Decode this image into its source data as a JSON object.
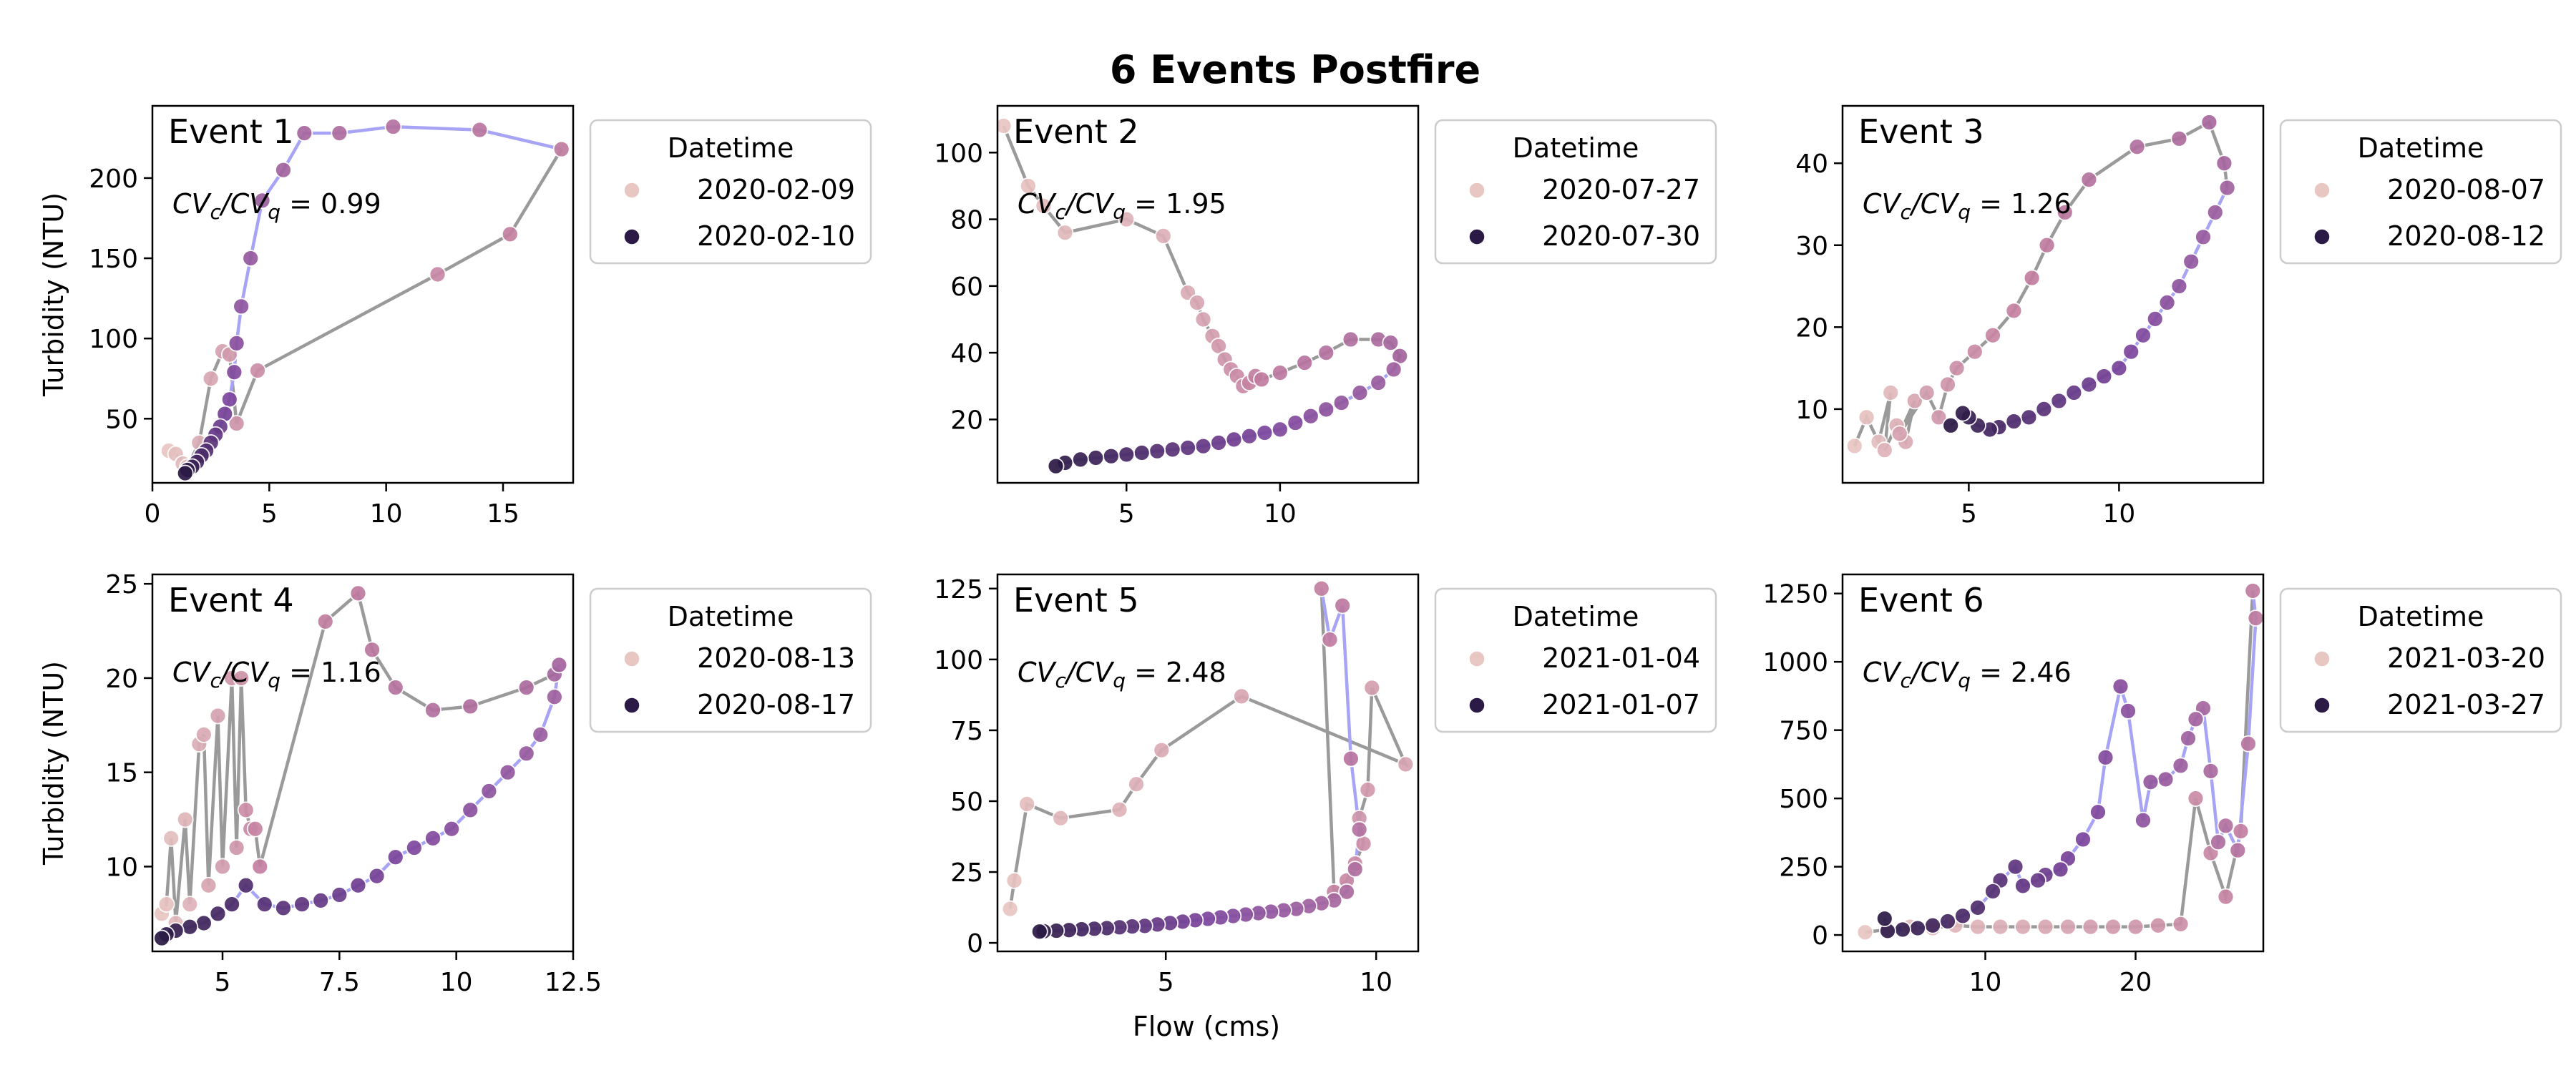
{
  "figure": {
    "title": "6 Events Postfire",
    "xlabel": "Flow (cms)",
    "ylabel": "Turbidity (NTU)",
    "legend_title": "Datetime",
    "colors": {
      "start": "#e8c6c2",
      "end": "#2b1a45",
      "rising_limb": "#a7a3f5",
      "falling_limb": "#9a9a9a"
    }
  },
  "chart_data": [
    {
      "type": "scatter",
      "panel": "Event 1",
      "annotation_ratio": "0.99",
      "legend": [
        "2020-02-09",
        "2020-02-10"
      ],
      "xlim": [
        0,
        18
      ],
      "ylim": [
        10,
        245
      ],
      "xticks": [
        0,
        5,
        10,
        15
      ],
      "yticks": [
        50,
        100,
        150,
        200
      ],
      "show_xticklabels": true,
      "show_ylabel": true,
      "x": [
        0.7,
        1.0,
        1.3,
        1.5,
        2.0,
        2.5,
        3.0,
        3.3,
        3.6,
        4.5,
        12.2,
        15.3,
        17.5,
        14.0,
        10.3,
        8.0,
        6.5,
        5.6,
        4.7,
        4.2,
        3.8,
        3.6,
        3.5,
        3.3,
        3.1,
        2.9,
        2.7,
        2.5,
        2.3,
        2.1,
        1.9,
        1.7,
        1.5,
        1.4
      ],
      "y": [
        30,
        28,
        22,
        20,
        35,
        75,
        92,
        90,
        47,
        80,
        140,
        165,
        218,
        230,
        232,
        228,
        228,
        205,
        186,
        150,
        120,
        97,
        79,
        62,
        53,
        45,
        40,
        35,
        30,
        27,
        23,
        20,
        18,
        16
      ],
      "split": 12
    },
    {
      "type": "scatter",
      "panel": "Event 2",
      "annotation_ratio": "1.95",
      "legend": [
        "2020-07-27",
        "2020-07-30"
      ],
      "xlim": [
        0.8,
        14.5
      ],
      "ylim": [
        1,
        114
      ],
      "xticks": [
        5,
        10
      ],
      "yticks": [
        20,
        40,
        60,
        80,
        100
      ],
      "show_xticklabels": true,
      "show_ylabel": false,
      "x": [
        1.0,
        1.8,
        2.3,
        3.0,
        5.0,
        6.2,
        7.0,
        7.3,
        7.5,
        7.8,
        8.0,
        8.2,
        8.4,
        8.6,
        8.8,
        9.0,
        9.2,
        9.4,
        10.0,
        10.8,
        11.5,
        12.3,
        13.2,
        13.6,
        13.9,
        13.7,
        13.2,
        12.6,
        12.0,
        11.5,
        11.0,
        10.5,
        10.0,
        9.5,
        9.0,
        8.5,
        8.0,
        7.5,
        7.0,
        6.5,
        6.0,
        5.5,
        5.0,
        4.5,
        4.0,
        3.5,
        3.0,
        2.7
      ],
      "y": [
        108,
        90,
        84,
        76,
        80,
        75,
        58,
        55,
        50,
        45,
        42,
        38,
        35,
        33,
        30,
        31,
        33,
        32,
        34,
        37,
        40,
        44,
        44,
        43,
        39,
        35,
        31,
        28,
        25,
        23,
        21,
        19,
        17,
        16,
        15,
        14,
        13,
        12,
        11.5,
        11,
        10.5,
        10,
        9.5,
        9,
        8.5,
        8,
        7,
        6
      ],
      "split": 25
    },
    {
      "type": "scatter",
      "panel": "Event 3",
      "annotation_ratio": "1.26",
      "legend": [
        "2020-08-07",
        "2020-08-12"
      ],
      "xlim": [
        0.8,
        14.8
      ],
      "ylim": [
        1,
        47
      ],
      "xticks": [
        5,
        10
      ],
      "yticks": [
        10,
        20,
        30,
        40
      ],
      "show_xticklabels": true,
      "show_ylabel": false,
      "x": [
        1.2,
        1.6,
        2.0,
        2.4,
        2.2,
        2.6,
        2.9,
        3.2,
        2.7,
        3.6,
        4.0,
        4.3,
        4.6,
        5.2,
        5.8,
        6.5,
        7.1,
        7.6,
        8.2,
        9.0,
        10.6,
        12.0,
        13.0,
        13.5,
        13.6,
        13.2,
        12.8,
        12.4,
        12.0,
        11.6,
        11.2,
        10.8,
        10.4,
        10.0,
        9.5,
        9.0,
        8.5,
        8.0,
        7.5,
        7.0,
        6.5,
        6.0,
        5.7,
        5.3,
        5.0,
        4.8,
        4.4
      ],
      "y": [
        5.5,
        9,
        6,
        12,
        5,
        8,
        6,
        11,
        7,
        12,
        9,
        13,
        15,
        17,
        19,
        22,
        26,
        30,
        34,
        38,
        42,
        43,
        45,
        40,
        37,
        34,
        31,
        28,
        25,
        23,
        21,
        19,
        17,
        15,
        14,
        13,
        12,
        11,
        10,
        9,
        8.5,
        7.8,
        7.5,
        8,
        9,
        9.5,
        8
      ],
      "split": 24
    },
    {
      "type": "scatter",
      "panel": "Event 4",
      "annotation_ratio": "1.16",
      "legend": [
        "2020-08-13",
        "2020-08-17"
      ],
      "xlim": [
        3.5,
        12.5
      ],
      "ylim": [
        5.5,
        25.5
      ],
      "xticks": [
        5.0,
        7.5,
        10.0,
        12.5
      ],
      "yticks": [
        10,
        15,
        20,
        25
      ],
      "show_xticklabels": true,
      "show_ylabel": true,
      "x": [
        3.7,
        3.8,
        3.9,
        4.0,
        4.2,
        4.3,
        4.5,
        4.6,
        4.7,
        4.9,
        5.0,
        5.2,
        5.3,
        5.4,
        5.5,
        5.6,
        5.7,
        5.8,
        7.2,
        7.9,
        8.2,
        8.7,
        9.5,
        10.3,
        11.5,
        12.1,
        12.2,
        12.1,
        11.8,
        11.5,
        11.1,
        10.7,
        10.3,
        9.9,
        9.5,
        9.1,
        8.7,
        8.3,
        7.9,
        7.5,
        7.1,
        6.7,
        6.3,
        5.9,
        5.5,
        5.2,
        4.9,
        4.6,
        4.3,
        4.0,
        3.8,
        3.7
      ],
      "y": [
        7.5,
        8,
        11.5,
        7,
        12.5,
        8,
        16.5,
        17,
        9,
        18,
        10,
        20,
        11,
        20,
        13,
        12,
        12,
        10,
        23,
        24.5,
        21.5,
        19.5,
        18.3,
        18.5,
        19.5,
        20.2,
        20.7,
        19,
        17,
        16,
        15,
        14,
        13,
        12,
        11.5,
        11,
        10.5,
        9.5,
        9,
        8.5,
        8.2,
        8,
        7.8,
        8,
        9,
        8,
        7.5,
        7,
        6.8,
        6.6,
        6.4,
        6.2
      ],
      "split": 26
    },
    {
      "type": "scatter",
      "panel": "Event 5",
      "annotation_ratio": "2.48",
      "legend": [
        "2021-01-04",
        "2021-01-07"
      ],
      "xlim": [
        1.0,
        11.0
      ],
      "ylim": [
        -3,
        130
      ],
      "xticks": [
        5,
        10
      ],
      "yticks": [
        0,
        25,
        50,
        75,
        100,
        125
      ],
      "show_xticklabels": true,
      "show_ylabel": false,
      "x": [
        1.3,
        1.4,
        1.7,
        2.5,
        3.9,
        4.3,
        4.9,
        6.8,
        10.7,
        9.9,
        9.8,
        9.6,
        9.7,
        9.5,
        9.3,
        9.0,
        8.7,
        8.9,
        9.2,
        9.4,
        9.6,
        9.5,
        9.3,
        9.0,
        8.7,
        8.4,
        8.1,
        7.8,
        7.5,
        7.2,
        6.9,
        6.6,
        6.3,
        6.0,
        5.7,
        5.4,
        5.1,
        4.8,
        4.5,
        4.2,
        3.9,
        3.6,
        3.3,
        3.0,
        2.7,
        2.4,
        2.1,
        2.0
      ],
      "y": [
        12,
        22,
        49,
        44,
        47,
        56,
        68,
        87,
        63,
        90,
        54,
        44,
        35,
        28,
        22,
        18,
        125,
        107,
        119,
        65,
        40,
        26,
        18,
        15,
        14,
        13,
        12,
        11.5,
        11,
        10.5,
        10,
        9.5,
        9,
        8.5,
        8,
        7.5,
        7,
        6.5,
        6,
        5.8,
        5.5,
        5.2,
        5,
        4.8,
        4.5,
        4.3,
        4.1,
        4
      ],
      "split": 16
    },
    {
      "type": "scatter",
      "panel": "Event 6",
      "annotation_ratio": "2.46",
      "legend": [
        "2021-03-20",
        "2021-03-27"
      ],
      "xlim": [
        0.5,
        28.5
      ],
      "ylim": [
        -60,
        1320
      ],
      "xticks": [
        10,
        20
      ],
      "yticks": [
        0,
        250,
        500,
        750,
        1000,
        1250
      ],
      "show_xticklabels": true,
      "show_ylabel": false,
      "x": [
        2.0,
        3.5,
        5.0,
        6.5,
        8.0,
        9.5,
        11.0,
        12.5,
        14.0,
        15.5,
        17.0,
        18.5,
        20.0,
        21.5,
        23.0,
        24.0,
        25.0,
        26.0,
        27.0,
        27.8,
        28.0,
        27.5,
        26.8,
        26.0,
        25.5,
        25.0,
        24.5,
        24.0,
        23.5,
        23.0,
        22.0,
        21.0,
        20.5,
        19.5,
        19.0,
        18.0,
        17.5,
        16.5,
        15.5,
        15.0,
        14.0,
        13.5,
        12.5,
        12.0,
        11.0,
        10.5,
        9.5,
        8.5,
        7.5,
        6.5,
        5.5,
        4.5,
        3.5,
        3.3
      ],
      "y": [
        10,
        20,
        30,
        25,
        35,
        30,
        30,
        30,
        30,
        30,
        30,
        30,
        30,
        35,
        40,
        500,
        300,
        140,
        380,
        1260,
        1160,
        700,
        310,
        400,
        340,
        600,
        830,
        790,
        720,
        620,
        570,
        560,
        420,
        820,
        910,
        650,
        450,
        350,
        280,
        240,
        220,
        200,
        180,
        250,
        200,
        160,
        100,
        70,
        50,
        35,
        25,
        20,
        15,
        60
      ],
      "split": 19
    }
  ]
}
